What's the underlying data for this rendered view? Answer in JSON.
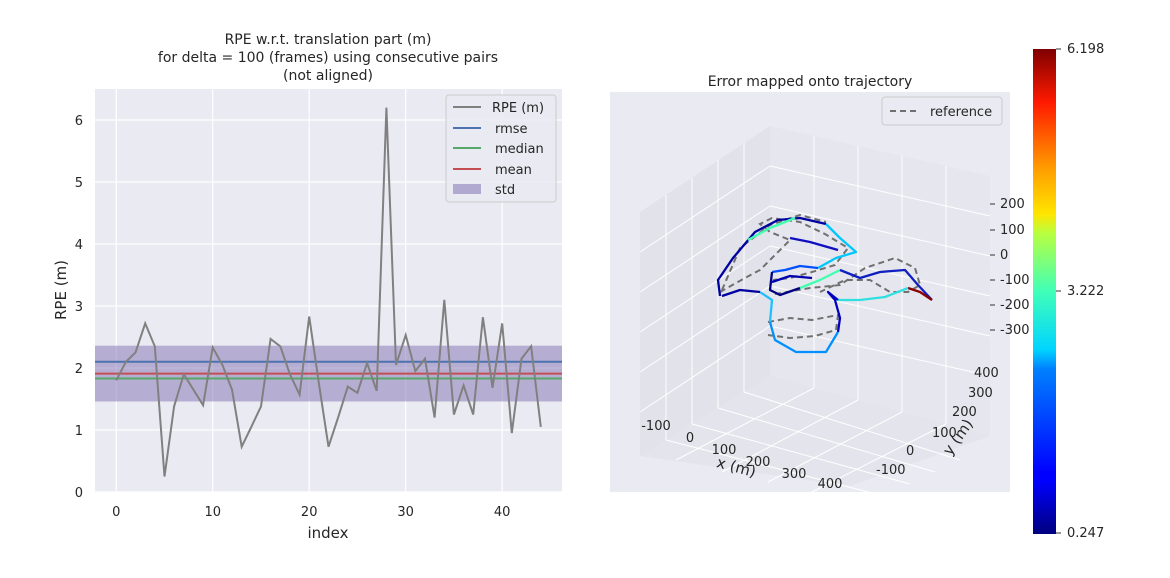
{
  "chart_data": [
    {
      "type": "line",
      "title_lines": [
        "RPE w.r.t. translation part (m)",
        "for delta = 100 (frames) using consecutive pairs",
        "(not aligned)"
      ],
      "xlabel": "index",
      "ylabel": "RPE (m)",
      "xlim": [
        -2.2,
        46.2
      ],
      "ylim": [
        0,
        6.5
      ],
      "xticks": [
        0,
        10,
        20,
        30,
        40
      ],
      "yticks": [
        0,
        1,
        2,
        3,
        4,
        5,
        6
      ],
      "grid": true,
      "legend_position": "top-right",
      "colors": {
        "rpe": "#808080",
        "rmse": "#4c72b0",
        "median": "#55a868",
        "mean": "#c44e52",
        "std": "#8172b2"
      },
      "x": [
        0,
        1,
        2,
        3,
        4,
        5,
        6,
        7,
        8,
        9,
        10,
        11,
        12,
        13,
        14,
        15,
        16,
        17,
        18,
        19,
        20,
        21,
        22,
        23,
        24,
        25,
        26,
        27,
        28,
        29,
        30,
        31,
        32,
        33,
        34,
        35,
        36,
        37,
        38,
        39,
        40,
        41,
        42,
        43,
        44
      ],
      "series": [
        {
          "name": "RPE (m)",
          "values": [
            1.8,
            2.1,
            2.25,
            2.72,
            2.35,
            0.25,
            1.38,
            1.9,
            1.65,
            1.4,
            2.33,
            2.05,
            1.65,
            0.73,
            1.05,
            1.38,
            2.47,
            2.35,
            1.9,
            1.57,
            2.83,
            1.75,
            0.73,
            1.2,
            1.7,
            1.6,
            2.08,
            1.63,
            6.2,
            2.05,
            2.53,
            1.95,
            2.15,
            1.2,
            3.1,
            1.25,
            1.72,
            1.25,
            2.82,
            1.68,
            2.72,
            0.95,
            2.15,
            2.35,
            1.05
          ]
        }
      ],
      "stats": [
        {
          "name": "rmse",
          "value": 2.1
        },
        {
          "name": "median",
          "value": 1.83
        },
        {
          "name": "mean",
          "value": 1.91
        },
        {
          "name": "std",
          "range": [
            1.46,
            2.36
          ]
        }
      ]
    },
    {
      "type": "3d-line",
      "title": "Error mapped onto trajectory",
      "xlabel": "x (m)",
      "ylabel": "y (m)",
      "xticks": [
        "-100",
        "0",
        "100",
        "200",
        "300",
        "400"
      ],
      "yticks": [
        "-100",
        "0",
        "100",
        "200",
        "300",
        "400"
      ],
      "zticks": [
        "200",
        "100",
        "0",
        "-100",
        "-200",
        "-300"
      ],
      "legend": [
        "reference"
      ],
      "colorbar": {
        "colormap": "jet",
        "min_label": "0.247",
        "mid_label": "3.222",
        "max_label": "6.198",
        "min": 0.247,
        "mid": 3.222,
        "max": 6.198
      },
      "colors": {
        "reference": "#808080"
      }
    }
  ]
}
